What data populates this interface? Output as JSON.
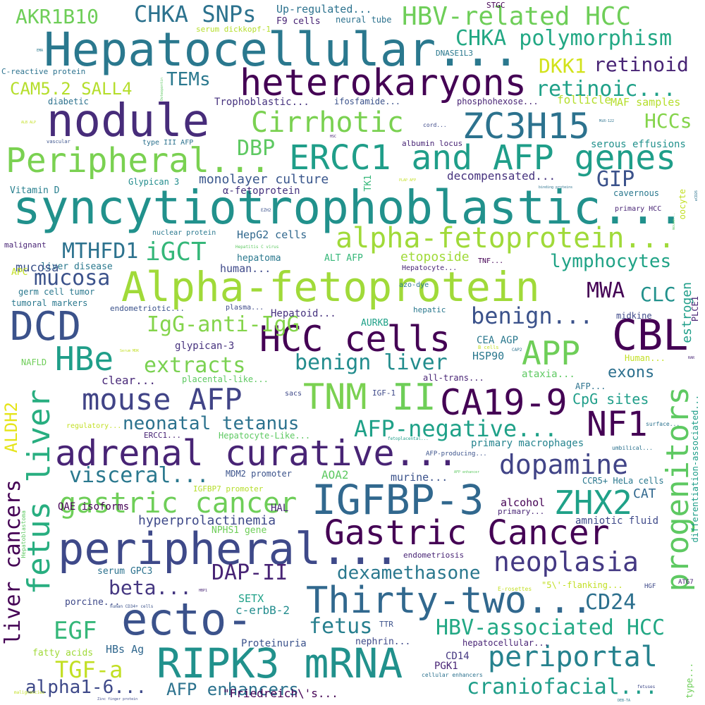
{
  "palette_note": "viridis",
  "words": [
    {
      "text": "syncytiotrophoblastic...",
      "color": "#21918c"
    },
    {
      "text": "Hepatocellular...",
      "color": "#2a788e"
    },
    {
      "text": "Alpha-fetoprotein",
      "color": "#a0da39"
    },
    {
      "text": "nodule",
      "color": "#472c7a"
    },
    {
      "text": "peripheral...",
      "color": "#3e4989"
    },
    {
      "text": "ecto-",
      "color": "#3b528b"
    },
    {
      "text": "RIPK3 mRNA",
      "color": "#21918c"
    },
    {
      "text": "IGFBP-3",
      "color": "#31688e"
    },
    {
      "text": "heterokaryons",
      "color": "#440154"
    },
    {
      "text": "adrenal curative...",
      "color": "#482475"
    },
    {
      "text": "Gastric Cancer",
      "color": "#440154"
    },
    {
      "text": "Thirty-two...",
      "color": "#31688e"
    },
    {
      "text": "DCD",
      "color": "#3b528b"
    },
    {
      "text": "CBL",
      "color": "#440154"
    },
    {
      "text": "HCC cells",
      "color": "#440154"
    },
    {
      "text": "ZC3H15",
      "color": "#2c728e"
    },
    {
      "text": "Peripheral...",
      "color": "#7ad151"
    },
    {
      "text": "ERCC1 and AFP genes",
      "color": "#1f9e89"
    },
    {
      "text": "alpha-fetoprotein...",
      "color": "#a0da39"
    },
    {
      "text": "mouse AFP",
      "color": "#414487"
    },
    {
      "text": "CA19-9",
      "color": "#440154"
    },
    {
      "text": "TNM",
      "color": "#7ad151"
    },
    {
      "text": "II",
      "color": "#6ece58"
    },
    {
      "text": "APP",
      "color": "#6ece58"
    },
    {
      "text": "HBe",
      "color": "#1f9e89"
    },
    {
      "text": "HBV-related HCC",
      "color": "#6ece58"
    },
    {
      "text": "progenitors",
      "color": "#5ec962"
    },
    {
      "text": "fetus liver",
      "color": "#28ae80"
    },
    {
      "text": "NF1",
      "color": "#440154"
    },
    {
      "text": "dopamine",
      "color": "#414487"
    },
    {
      "text": "gastric cancer",
      "color": "#6ece58"
    },
    {
      "text": "ZHX2",
      "color": "#1fa188"
    },
    {
      "text": "periportal",
      "color": "#26828e"
    },
    {
      "text": "neoplasia",
      "color": "#443983"
    },
    {
      "text": "Cirrhotic",
      "color": "#7ad151"
    },
    {
      "text": "CHKA SNPs",
      "color": "#2c728e"
    },
    {
      "text": "AKR1B10",
      "color": "#6ece58"
    },
    {
      "text": "CHKA polymorphism",
      "color": "#22a884"
    },
    {
      "text": "MWA",
      "color": "#440154"
    },
    {
      "text": "IgG-anti-IgG",
      "color": "#84d44b"
    },
    {
      "text": "benign...",
      "color": "#3b528b"
    },
    {
      "text": "benign liver",
      "color": "#228c8d"
    },
    {
      "text": "extracts",
      "color": "#7ad151"
    },
    {
      "text": "mucosa",
      "color": "#3b528b"
    },
    {
      "text": "iGCT",
      "color": "#35b779"
    },
    {
      "text": "MTHFD1",
      "color": "#2c728e"
    },
    {
      "text": "AFP-negative...",
      "color": "#1fa188"
    },
    {
      "text": "neonatal tetanus",
      "color": "#2c728e"
    },
    {
      "text": "visceral...",
      "color": "#2a788e"
    },
    {
      "text": "EGF",
      "color": "#35b779"
    },
    {
      "text": "TGF-a",
      "color": "#c2df23"
    },
    {
      "text": "HBV-associated HCC",
      "color": "#22a884"
    },
    {
      "text": "craniofacial...",
      "color": "#1f9e89"
    },
    {
      "text": "dexamethasone",
      "color": "#2a788e"
    },
    {
      "text": "DAP-II",
      "color": "#482475"
    },
    {
      "text": "CD24",
      "color": "#2d708e"
    },
    {
      "text": "fetus",
      "color": "#277f8e"
    },
    {
      "text": "beta...",
      "color": "#453781"
    },
    {
      "text": "liver cancers",
      "color": "#440154"
    },
    {
      "text": "alpha1-6...",
      "color": "#3e4989"
    },
    {
      "text": "AFP enhancers",
      "color": "#2c728e"
    },
    {
      "text": "DKK1",
      "color": "#d2e21b"
    },
    {
      "text": "retinoid",
      "color": "#482475"
    },
    {
      "text": "retinoic...",
      "color": "#1fa188"
    },
    {
      "text": "TEMs",
      "color": "#2a788e"
    },
    {
      "text": "CAM5.2 SALL4",
      "color": "#b5de2b"
    },
    {
      "text": "DBP",
      "color": "#5ec962"
    },
    {
      "text": "GIP",
      "color": "#3b528b"
    },
    {
      "text": "HCCs",
      "color": "#84d44b"
    },
    {
      "text": "lymphocytes",
      "color": "#20a386"
    },
    {
      "text": "CLC",
      "color": "#21918c"
    },
    {
      "text": "estrogen",
      "color": "#1f9e89"
    },
    {
      "text": "ALDH2",
      "color": "#e5e419"
    },
    {
      "text": "CpG sites",
      "color": "#1f9e89"
    },
    {
      "text": "exons",
      "color": "#2d708e"
    },
    {
      "text": "monolayer culture",
      "color": "#39568c"
    },
    {
      "text": "etoposide",
      "color": "#a0da39"
    },
    {
      "text": "hyperprolactinemia",
      "color": "#3e4989"
    },
    {
      "text": "Up-regulated...",
      "color": "#2c728e"
    },
    {
      "text": "follicle",
      "color": "#b5de2b"
    },
    {
      "text": "MAF samples",
      "color": "#b5de2b"
    },
    {
      "text": "serous effusions",
      "color": "#21918c"
    },
    {
      "text": "decompensated...",
      "color": "#46327e"
    },
    {
      "text": "HepG2 cells",
      "color": "#31688e"
    },
    {
      "text": "Trophoblastic...",
      "color": "#46327e"
    },
    {
      "text": "primary macrophages",
      "color": "#25848e"
    },
    {
      "text": "amniotic fluid",
      "color": "#3e4989"
    },
    {
      "text": "alcohol",
      "color": "#440154"
    },
    {
      "text": "CAT",
      "color": "#31688e"
    },
    {
      "text": "SETX",
      "color": "#1fa188"
    },
    {
      "text": "c-erbB-2",
      "color": "#228c8d"
    },
    {
      "text": "CEA AGP",
      "color": "#2a788e"
    },
    {
      "text": "HSP90",
      "color": "#2a788e"
    },
    {
      "text": "AOA2",
      "color": "#5ec962"
    },
    {
      "text": "murine...",
      "color": "#3b528b"
    },
    {
      "text": "HAL",
      "color": "#482475"
    },
    {
      "text": "Proteinuria",
      "color": "#3b528b"
    },
    {
      "text": "HBs Ag",
      "color": "#31688e"
    },
    {
      "text": "PGK1",
      "color": "#482475"
    },
    {
      "text": "CD14",
      "color": "#453781"
    },
    {
      "text": "\"Friedreich\\'s...",
      "color": "#440154"
    },
    {
      "text": "Hepatoid...",
      "color": "#46327e"
    },
    {
      "text": "clear...",
      "color": "#482878"
    },
    {
      "text": "ataxia...",
      "color": "#5ec962"
    },
    {
      "text": "glypican-3",
      "color": "#46327e"
    },
    {
      "text": "hepatoma",
      "color": "#2a788e"
    },
    {
      "text": "human...",
      "color": "#3e4989"
    },
    {
      "text": "liver disease",
      "color": "#2a788e"
    },
    {
      "text": "mucosa",
      "color": "#3b528b"
    },
    {
      "text": "QAE isoforms",
      "color": "#440154"
    },
    {
      "text": "serum GPC3",
      "color": "#2c728e"
    },
    {
      "text": "porcine...",
      "color": "#3e4989"
    },
    {
      "text": "fatty acids",
      "color": "#a0da39"
    },
    {
      "text": "nephrin...",
      "color": "#3e4989"
    },
    {
      "text": "hepatocellular...",
      "color": "#482475"
    },
    {
      "text": "TTR",
      "color": "#3b528b"
    },
    {
      "text": "endometriosis",
      "color": "#482475"
    },
    {
      "text": "NPHS1 gene",
      "color": "#6ece58"
    },
    {
      "text": "MDM2 promoter",
      "color": "#3b528b"
    },
    {
      "text": "IGFBP7 promoter",
      "color": "#b5de2b"
    },
    {
      "text": "AURKB",
      "color": "#1fa188"
    },
    {
      "text": "ALT AFP",
      "color": "#35b779"
    },
    {
      "text": "TK1",
      "color": "#35b779"
    },
    {
      "text": "α-fetoprotein",
      "color": "#46327e"
    },
    {
      "text": "Glypican 3",
      "color": "#228c8d"
    },
    {
      "text": "Vitamin D",
      "color": "#277f8e"
    },
    {
      "text": "type III AFP",
      "color": "#2c728e"
    },
    {
      "text": "diabetic",
      "color": "#2c728e"
    },
    {
      "text": "C-reactive protein",
      "color": "#2c728e"
    },
    {
      "text": "serum dickkopf-1",
      "color": "#b5de2b"
    },
    {
      "text": "F9 cells",
      "color": "#482475"
    },
    {
      "text": "neural tube",
      "color": "#2c728e"
    },
    {
      "text": "STGC",
      "color": "#440154"
    },
    {
      "text": "DNASE1L3",
      "color": "#2a788e"
    },
    {
      "text": "ifosfamide...",
      "color": "#3b528b"
    },
    {
      "text": "phosphohexose...",
      "color": "#482475"
    },
    {
      "text": "albumin locus",
      "color": "#482475"
    },
    {
      "text": "cavernous",
      "color": "#2a788e"
    },
    {
      "text": "primary HCC",
      "color": "#482475"
    },
    {
      "text": "oocyte",
      "color": "#c2df23"
    },
    {
      "text": "nuclear protein",
      "color": "#2a788e"
    },
    {
      "text": "malignant",
      "color": "#482475"
    },
    {
      "text": "APC",
      "color": "#c2df23"
    },
    {
      "text": "germ cell tumor",
      "color": "#2a788e"
    },
    {
      "text": "tumoral markers",
      "color": "#2a788e"
    },
    {
      "text": "endometriotic...",
      "color": "#3b528b"
    },
    {
      "text": "plasma...",
      "color": "#3e4989"
    },
    {
      "text": "hepatic",
      "color": "#2a788e"
    },
    {
      "text": "midkine",
      "color": "#3e4989"
    },
    {
      "text": "PLCE1",
      "color": "#482475"
    },
    {
      "text": "NAFLD",
      "color": "#6ece58"
    },
    {
      "text": "placental-like...",
      "color": "#5ec962"
    },
    {
      "text": "all-trans...",
      "color": "#482475"
    },
    {
      "text": "sacs",
      "color": "#3e4989"
    },
    {
      "text": "IGF-1",
      "color": "#3e4989"
    },
    {
      "text": "AFP...",
      "color": "#2c728e"
    },
    {
      "text": "Human...",
      "color": "#c2df23"
    },
    {
      "text": "ERCC1...",
      "color": "#482475"
    },
    {
      "text": "Hepatocyte-Like...",
      "color": "#5ec962"
    },
    {
      "text": "regulatory...",
      "color": "#c2df23"
    },
    {
      "text": "differentiation-associated...",
      "color": "#1f9e89"
    },
    {
      "text": "CCR5+ HeLa cells",
      "color": "#2a788e"
    },
    {
      "text": "primary...",
      "color": "#482475"
    },
    {
      "text": "AFP-producing...",
      "color": "#3b528b"
    },
    {
      "text": "fetoplacental...",
      "color": "#1f9e89"
    },
    {
      "text": "umbilical...",
      "color": "#2c728e"
    },
    {
      "text": "surface...",
      "color": "#2c728e"
    },
    {
      "text": "\"5\\'-flanking...",
      "color": "#c2df23"
    },
    {
      "text": "E-rosettes",
      "color": "#c2df23"
    },
    {
      "text": "HGF",
      "color": "#3e4989"
    },
    {
      "text": "ATG7",
      "color": "#482475"
    },
    {
      "text": "cellular enhancers",
      "color": "#2c728e"
    },
    {
      "text": "type...",
      "color": "#6ece58"
    },
    {
      "text": "fetuses",
      "color": "#3e4989"
    },
    {
      "text": "Hepatocyte...",
      "color": "#482475"
    },
    {
      "text": "TNF...",
      "color": "#440154"
    },
    {
      "text": "azo-dye",
      "color": "#2a788e"
    },
    {
      "text": "Hepatoblastoma",
      "color": "#5ec962"
    },
    {
      "text": "HBP1",
      "color": "#482475"
    },
    {
      "text": "human CD34+ cells",
      "color": "#3b528b"
    },
    {
      "text": "malignancies",
      "color": "#c2df23"
    },
    {
      "text": "Zinc finger protein",
      "color": "#3e4989"
    },
    {
      "text": "DEB-TA",
      "color": "#2a788e"
    },
    {
      "text": "cord...",
      "color": "#3e4989"
    },
    {
      "text": "HSC",
      "color": "#482475"
    },
    {
      "text": "MiR-122",
      "color": "#2c728e"
    },
    {
      "text": "EZH2",
      "color": "#3b528b"
    },
    {
      "text": "Hepatitis C virus",
      "color": "#5ec962"
    },
    {
      "text": "PLAP AFP",
      "color": "#c2df23"
    },
    {
      "text": "binding proteins",
      "color": "#2c728e"
    },
    {
      "text": "mouse...",
      "color": "#5ec962"
    },
    {
      "text": "eCD26",
      "color": "#2c728e"
    },
    {
      "text": "Osteopontin",
      "color": "#5ec962"
    },
    {
      "text": "EMA",
      "color": "#2a788e"
    },
    {
      "text": "ALB ALP",
      "color": "#c2df23"
    },
    {
      "text": "vascular",
      "color": "#3b528b"
    },
    {
      "text": "B cells",
      "color": "#c2df23"
    },
    {
      "text": "CAP2",
      "color": "#2c728e"
    },
    {
      "text": "RAR",
      "color": "#482475"
    },
    {
      "text": "AFP enhancer",
      "color": "#5ec962"
    },
    {
      "text": "Serum MDK",
      "color": "#c2df23"
    }
  ]
}
